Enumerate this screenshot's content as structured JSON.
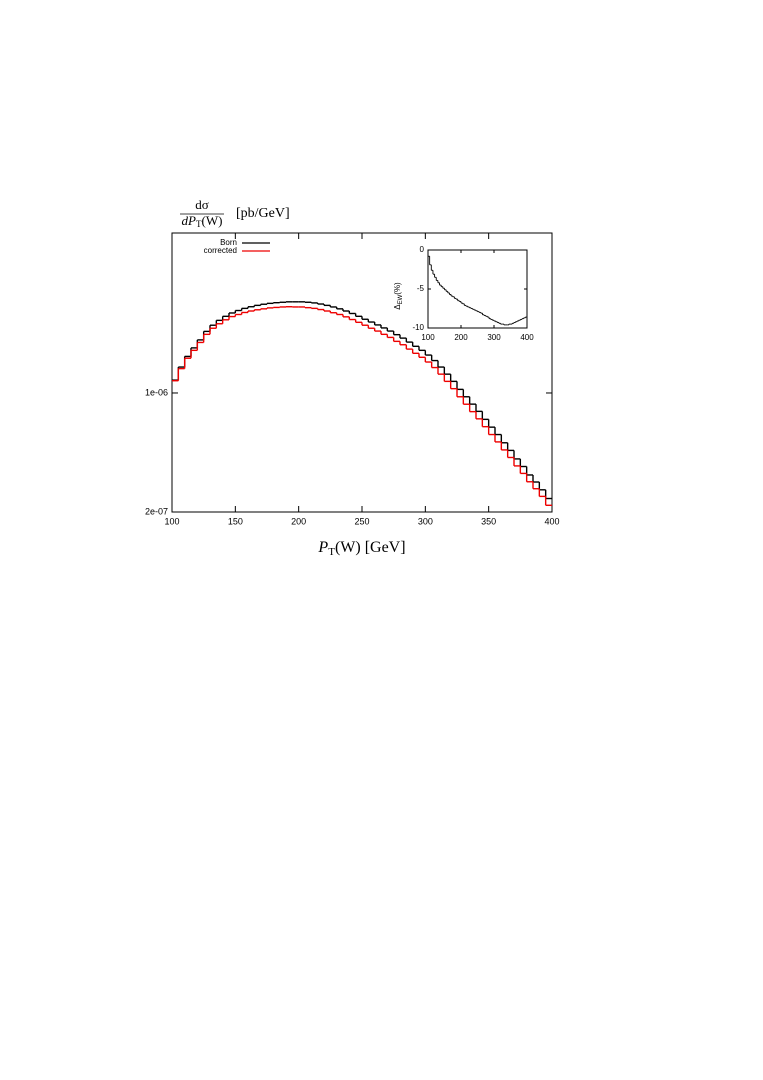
{
  "chart_data": [
    {
      "type": "histogram",
      "ylabel": {
        "numerator": "dσ",
        "denominator_symbol": "dP",
        "denominator_subscript": "T",
        "denominator_rest": "(W)",
        "unit": "[pb/GeV]"
      },
      "xlabel": {
        "symbol": "P",
        "subscript": "T",
        "rest": "(W) [GeV]"
      },
      "yscale": "log",
      "xlim": [
        100,
        400
      ],
      "xticks": [
        100,
        150,
        200,
        250,
        300,
        350,
        400
      ],
      "ylim": [
        2e-07,
        8.7e-06
      ],
      "yticks": [
        {
          "value": 2e-07,
          "label": "2e-07"
        },
        {
          "value": 1e-06,
          "label": "1e-06"
        }
      ],
      "legend": "top-left",
      "bins": [
        100,
        105,
        110,
        115,
        120,
        125,
        130,
        135,
        140,
        145,
        150,
        155,
        160,
        165,
        170,
        175,
        180,
        185,
        190,
        195,
        200,
        205,
        210,
        215,
        220,
        225,
        230,
        235,
        240,
        245,
        250,
        255,
        260,
        265,
        270,
        275,
        280,
        285,
        290,
        295,
        300,
        305,
        310,
        315,
        320,
        325,
        330,
        335,
        340,
        345,
        350,
        355,
        360,
        365,
        370,
        375,
        380,
        385,
        390,
        395,
        400
      ],
      "series": [
        {
          "name": "Born",
          "color": "#000000",
          "values": [
            1.19e-06,
            1.42e-06,
            1.64e-06,
            1.84e-06,
            2.05e-06,
            2.3e-06,
            2.5e-06,
            2.67e-06,
            2.82e-06,
            2.95e-06,
            3.05e-06,
            3.14e-06,
            3.21e-06,
            3.27e-06,
            3.32e-06,
            3.36e-06,
            3.39e-06,
            3.41e-06,
            3.43e-06,
            3.43e-06,
            3.43e-06,
            3.41e-06,
            3.38e-06,
            3.33e-06,
            3.27e-06,
            3.2e-06,
            3.12e-06,
            3.03e-06,
            2.93e-06,
            2.82e-06,
            2.71e-06,
            2.61e-06,
            2.51e-06,
            2.41e-06,
            2.31e-06,
            2.2e-06,
            2.1e-06,
            1.99e-06,
            1.88e-06,
            1.78e-06,
            1.67e-06,
            1.55e-06,
            1.42e-06,
            1.29e-06,
            1.17e-06,
            1.05e-06,
            9.5e-07,
            8.6e-07,
            7.8e-07,
            7e-07,
            6.3e-07,
            5.7e-07,
            5.1e-07,
            4.6e-07,
            4.1e-07,
            3.7e-07,
            3.3e-07,
            3e-07,
            2.7e-07,
            2.4e-07
          ]
        },
        {
          "name": "corrected",
          "color": "#ee0000",
          "values": [
            1.18e-06,
            1.39e-06,
            1.6e-06,
            1.78e-06,
            1.98e-06,
            2.21e-06,
            2.4e-06,
            2.55e-06,
            2.69e-06,
            2.81e-06,
            2.89e-06,
            2.97e-06,
            3.03e-06,
            3.08e-06,
            3.12e-06,
            3.16e-06,
            3.18e-06,
            3.2e-06,
            3.21e-06,
            3.2e-06,
            3.2e-06,
            3.17e-06,
            3.14e-06,
            3.09e-06,
            3.03e-06,
            2.96e-06,
            2.89e-06,
            2.8e-06,
            2.7e-06,
            2.6e-06,
            2.5e-06,
            2.4e-06,
            2.31e-06,
            2.21e-06,
            2.12e-06,
            2.01e-06,
            1.92e-06,
            1.81e-06,
            1.71e-06,
            1.62e-06,
            1.52e-06,
            1.41e-06,
            1.29e-06,
            1.17e-06,
            1.06e-06,
            9.5e-07,
            8.59e-07,
            7.77e-07,
            7.05e-07,
            6.34e-07,
            5.7e-07,
            5.16e-07,
            4.63e-07,
            4.18e-07,
            3.73e-07,
            3.37e-07,
            3.01e-07,
            2.74e-07,
            2.47e-07,
            2.19e-07
          ]
        }
      ]
    },
    {
      "type": "histogram",
      "ylabel": {
        "symbol": "Δ",
        "subscript": "EW",
        "rest": "(%)"
      },
      "xlim": [
        100,
        400
      ],
      "xticks": [
        100,
        200,
        300,
        400
      ],
      "ylim": [
        -10,
        0
      ],
      "yticks": [
        0,
        -5,
        -10
      ],
      "bins": [
        100,
        105,
        110,
        115,
        120,
        125,
        130,
        135,
        140,
        145,
        150,
        155,
        160,
        165,
        170,
        175,
        180,
        185,
        190,
        195,
        200,
        205,
        210,
        215,
        220,
        225,
        230,
        235,
        240,
        245,
        250,
        255,
        260,
        265,
        270,
        275,
        280,
        285,
        290,
        295,
        300,
        305,
        310,
        315,
        320,
        325,
        330,
        335,
        340,
        345,
        350,
        355,
        360,
        365,
        370,
        375,
        380,
        385,
        390,
        395,
        400
      ],
      "color": "#000000",
      "values": [
        -0.8,
        -1.9,
        -2.6,
        -3.1,
        -3.5,
        -3.9,
        -4.2,
        -4.5,
        -4.7,
        -4.9,
        -5.1,
        -5.3,
        -5.5,
        -5.7,
        -5.9,
        -6.0,
        -6.2,
        -6.3,
        -6.5,
        -6.6,
        -6.8,
        -6.9,
        -7.1,
        -7.2,
        -7.3,
        -7.4,
        -7.5,
        -7.6,
        -7.7,
        -7.8,
        -7.9,
        -8.0,
        -8.1,
        -8.3,
        -8.4,
        -8.5,
        -8.6,
        -8.8,
        -8.9,
        -9.0,
        -9.1,
        -9.2,
        -9.3,
        -9.4,
        -9.5,
        -9.5,
        -9.6,
        -9.6,
        -9.6,
        -9.5,
        -9.5,
        -9.4,
        -9.3,
        -9.2,
        -9.1,
        -9.0,
        -8.9,
        -8.8,
        -8.7,
        -8.6
      ]
    }
  ]
}
